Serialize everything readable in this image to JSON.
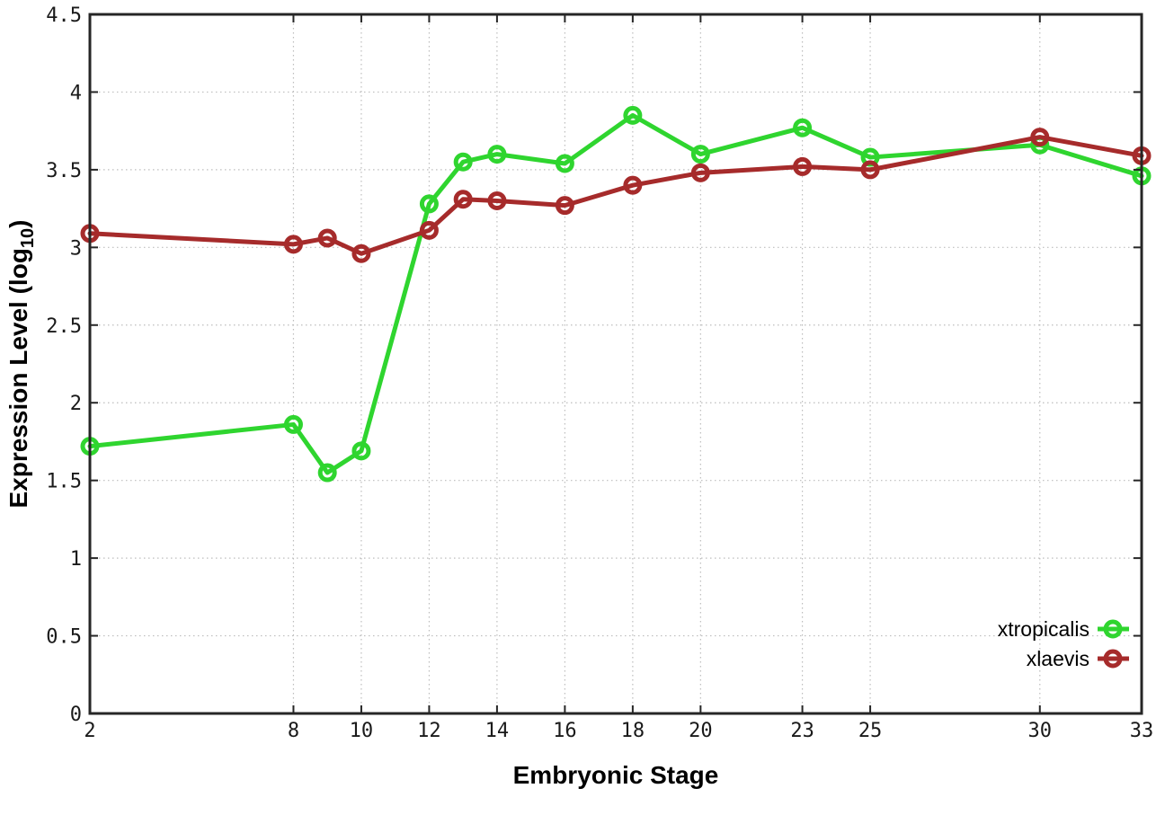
{
  "chart": {
    "xlabel": "Embryonic Stage",
    "ylabel_pre": "Expression Level (log",
    "ylabel_sub": "10",
    "ylabel_post": ")"
  },
  "chart_data": {
    "type": "line",
    "title": "",
    "xlabel": "Embryonic Stage",
    "ylabel": "Expression Level (log10)",
    "x": [
      2,
      8,
      9,
      10,
      12,
      13,
      14,
      16,
      18,
      20,
      23,
      25,
      30,
      33
    ],
    "series": [
      {
        "name": "xtropicalis",
        "color": "#2fd52f",
        "values": [
          1.72,
          1.86,
          1.55,
          1.69,
          3.28,
          3.55,
          3.6,
          3.54,
          3.85,
          3.6,
          3.77,
          3.58,
          3.66,
          3.46
        ]
      },
      {
        "name": "xlaevis",
        "color": "#a62b2b",
        "values": [
          3.09,
          3.02,
          3.06,
          2.96,
          3.11,
          3.31,
          3.3,
          3.27,
          3.4,
          3.48,
          3.52,
          3.5,
          3.71,
          3.59
        ]
      }
    ],
    "xticks": [
      2,
      8,
      10,
      12,
      14,
      16,
      18,
      20,
      23,
      25,
      30,
      33
    ],
    "yticks": [
      0,
      0.5,
      1,
      1.5,
      2,
      2.5,
      3,
      3.5,
      4,
      4.5
    ],
    "xlim": [
      2,
      33
    ],
    "ylim": [
      0,
      4.5
    ],
    "grid": true,
    "grid_color": "#bdbdbd",
    "axis_color": "#262626",
    "legend_position": "bottom-right",
    "marker": "open-circle"
  }
}
